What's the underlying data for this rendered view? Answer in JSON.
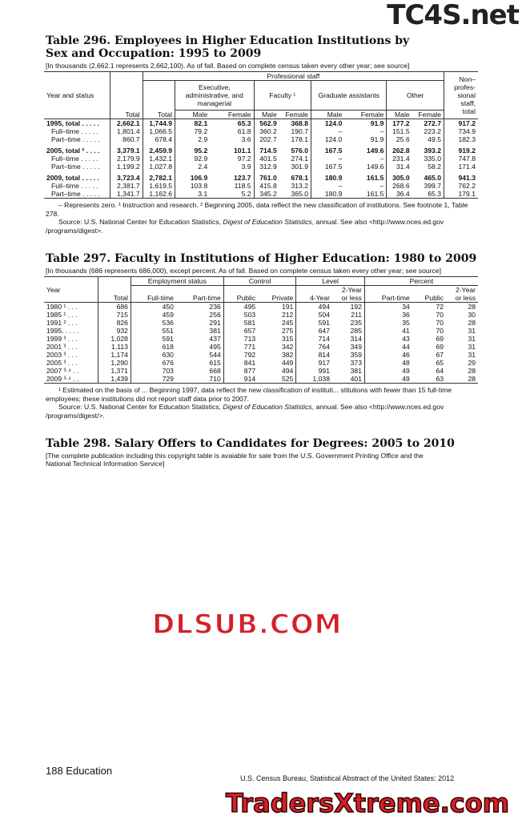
{
  "t296": {
    "title": "Table 296. Employees in Higher Education Institutions by Sex and Occupation: 1995 to 2009",
    "headnote": "[In thousands (2,662.1 represents 2,662,100). As of fall. Based on complete census taken every other year; see source]",
    "h": {
      "year": "Year and status",
      "total": "Total",
      "prof": "Professional staff",
      "ptotal": "Total",
      "exec": "Executive, administrative, and managerial",
      "fac": "Faculty ¹",
      "grad": "Graduate assistants",
      "other": "Other",
      "nonprof": "Non– profes- sional staff, total",
      "male": "Male",
      "female": "Female"
    },
    "rows": [
      [
        "1995, total . . . . .",
        "2,662.1",
        "1,744.9",
        "82.1",
        "65.3",
        "562.9",
        "368.8",
        "124.0",
        "91.9",
        "177.2",
        "272.7",
        "917.2"
      ],
      [
        "Full–time . . . . .",
        "1,801.4",
        "1,066.5",
        "79.2",
        "61.8",
        "360.2",
        "190.7",
        "–",
        "–",
        "151.5",
        "223.2",
        "734.9"
      ],
      [
        "Part–time . . . . .",
        "860.7",
        "678.4",
        "2.9",
        "3.6",
        "202.7",
        "178.1",
        "124.0",
        "91.9",
        "25.6",
        "49.5",
        "182.3"
      ],
      [
        "2005, total ² . . . .",
        "3,379.1",
        "2,459.9",
        "95.2",
        "101.1",
        "714.5",
        "576.0",
        "167.5",
        "149.6",
        "262.8",
        "393.2",
        "919.2"
      ],
      [
        "Full–time . . . . .",
        "2,179.9",
        "1,432.1",
        "92.9",
        "97.2",
        "401.5",
        "274.1",
        "–",
        "–",
        "231.4",
        "335.0",
        "747.8"
      ],
      [
        "Part–time . . . . .",
        "1,199.2",
        "1,027.8",
        "2.4",
        "3.9",
        "312.9",
        "301.9",
        "167.5",
        "149.6",
        "31.4",
        "58.2",
        "171.4"
      ],
      [
        "2009, total . . . . .",
        "3,723.4",
        "2,782.1",
        "106.9",
        "123.7",
        "761.0",
        "678.1",
        "180.9",
        "161.5",
        "305.0",
        "465.0",
        "941.3"
      ],
      [
        "Full–time . . . . .",
        "2,381.7",
        "1,619.5",
        "103.8",
        "118.5",
        "415.8",
        "313.2",
        "–",
        "–",
        "268.6",
        "399.7",
        "762.2"
      ],
      [
        "Part–time . . . . .",
        "1,341.7",
        "1,162.6",
        "3.1",
        "5.2",
        "345.2",
        "365.0",
        "180.9",
        "161.5",
        "36.4",
        "65.3",
        "179.1"
      ]
    ],
    "note1": "– Represents zero. ¹ Instruction and research. ² Beginning 2005, data reflect the new classification of institutions. See footnote 1, Table 278.",
    "source_a": "Source: U.S. National Center for Education Statistics, ",
    "source_i": "Digest of Education Statistics",
    "source_b": ", annual. See also <http://www.nces.ed.gov /programs/digest>."
  },
  "t297": {
    "title": "Table 297. Faculty in Institutions of Higher Education: 1980 to 2009",
    "headnote": "[In thousands (686 represents 686,000), except percent. As of fall. Based on complete census taken every other year; see source]",
    "h": {
      "year": "Year",
      "total": "Total",
      "emp": "Employment status",
      "ft": "Full-time",
      "pt": "Part-time",
      "control": "Control",
      "pub": "Public",
      "priv": "Private",
      "level": "Level",
      "fy": "4-Year",
      "ty": "2-Year or less",
      "pct": "Percent",
      "ppt": "Part-time",
      "ppub": "Public",
      "pty": "2-Year or less"
    },
    "rows": [
      [
        "1980 ¹ . . .",
        "686",
        "450",
        "236",
        "495",
        "191",
        "494",
        "192",
        "34",
        "72",
        "28"
      ],
      [
        "1985 ¹ . . .",
        "715",
        "459",
        "256",
        "503",
        "212",
        "504",
        "211",
        "36",
        "70",
        "30"
      ],
      [
        "1991 ² . . .",
        "826",
        "536",
        "291",
        "581",
        "245",
        "591",
        "235",
        "35",
        "70",
        "28"
      ],
      [
        "1995. . . . .",
        "932",
        "551",
        "381",
        "657",
        "275",
        "647",
        "285",
        "41",
        "70",
        "31"
      ],
      [
        "1999 ³ . . .",
        "1,028",
        "591",
        "437",
        "713",
        "315",
        "714",
        "314",
        "43",
        "69",
        "31"
      ],
      [
        "2001 ³ . . .",
        "1,113",
        "618",
        "495",
        "771",
        "342",
        "764",
        "349",
        "44",
        "69",
        "31"
      ],
      [
        "2003 ³ . . .",
        "1,174",
        "630",
        "544",
        "792",
        "382",
        "814",
        "359",
        "46",
        "67",
        "31"
      ],
      [
        "2005 ³ . . .",
        "1,290",
        "676",
        "615",
        "841",
        "449",
        "917",
        "373",
        "48",
        "65",
        "29"
      ],
      [
        "2007 ³·⁴ . .",
        "1,371",
        "703",
        "668",
        "877",
        "494",
        "991",
        "381",
        "49",
        "64",
        "28"
      ],
      [
        "2009 ³·⁴ . .",
        "1,439",
        "729",
        "710",
        "914",
        "525",
        "1,038",
        "401",
        "49",
        "63",
        "28"
      ]
    ],
    "note1": "¹ Estimated on the basis of ... Beginning 1997, data reflect the new classification of instituti... stitutions with fewer than 15 full-time employees; these institutions did not report staff data prior to 2007.",
    "source_a": "Source: U.S. National Center for Education Statistics, ",
    "source_i": "Digest of Education Statistics",
    "source_b": ", annual. See also <http://www.nces.ed.gov /programs/digest/>."
  },
  "t298": {
    "title": "Table 298. Salary Offers to Candidates for Degrees: 2005 to 2010",
    "headnote": "[The complete publication including this copyright table is avaiable for sale from the U.S. Government Printing Office and the National Technical Information Service]"
  },
  "footer": {
    "page": "188  Education",
    "source": "U.S. Census Bureau, Statistical Abstract of the United States: 2012"
  },
  "watermarks": {
    "top": "TC4S.net",
    "middle": "DLSUB.COM",
    "bottom": "TradersXtreme.com"
  }
}
